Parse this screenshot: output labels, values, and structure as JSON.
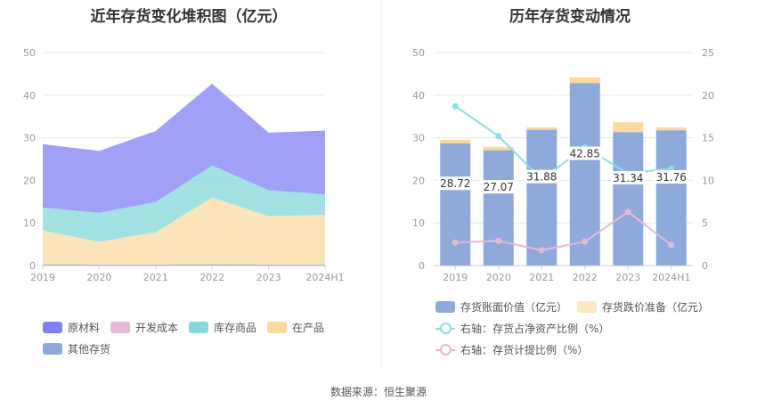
{
  "source_text": "数据来源：恒生聚源",
  "chart_data": [
    {
      "type": "area",
      "stacked": true,
      "title": "近年存货变化堆积图（亿元）",
      "categories": [
        "2019",
        "2020",
        "2021",
        "2022",
        "2023",
        "2024H1"
      ],
      "ylim": [
        0,
        50
      ],
      "yticks": [
        0,
        10,
        20,
        30,
        40,
        50
      ],
      "grid": true,
      "legend_position": "bottom",
      "series": [
        {
          "name": "其他存货",
          "color": "#8eaadb",
          "values": [
            0.3,
            0.2,
            0.2,
            0.3,
            0.2,
            0.2
          ]
        },
        {
          "name": "在产品",
          "color": "#fcdfae",
          "values": [
            7.9,
            5.4,
            7.6,
            15.7,
            11.4,
            11.7
          ]
        },
        {
          "name": "开发成本",
          "color": "#e8b8d8",
          "values": [
            0,
            0,
            0,
            0,
            0,
            0
          ]
        },
        {
          "name": "库存商品",
          "color": "#92dcdc",
          "values": [
            5.4,
            6.8,
            7.1,
            7.5,
            6.1,
            4.8
          ]
        },
        {
          "name": "原材料",
          "color": "#8f8ff4",
          "values": [
            14.9,
            14.5,
            16.7,
            19.2,
            13.5,
            15.0
          ]
        }
      ],
      "legend_order": [
        "原材料",
        "开发成本",
        "库存商品",
        "在产品",
        "其他存货"
      ]
    },
    {
      "type": "bar",
      "stacked": true,
      "title": "历年存货变动情况",
      "categories": [
        "2019",
        "2020",
        "2021",
        "2022",
        "2023",
        "2024H1"
      ],
      "ylim": [
        0,
        50
      ],
      "yticks": [
        0,
        10,
        20,
        30,
        40,
        50
      ],
      "y2lim": [
        0,
        25
      ],
      "y2ticks": [
        0,
        5,
        10,
        15,
        20,
        25
      ],
      "legend_position": "bottom",
      "series": [
        {
          "name": "存货账面价值（亿元）",
          "color": "#8eaadb",
          "values": [
            28.72,
            27.07,
            31.88,
            42.85,
            31.34,
            31.76
          ],
          "data_labels": [
            "28.72",
            "27.07",
            "31.88",
            "42.85",
            "31.34",
            "31.76"
          ]
        },
        {
          "name": "存货跌价准备（亿元）",
          "color": "#fcd99e",
          "values": [
            0.8,
            0.8,
            0.6,
            1.3,
            2.3,
            0.7
          ]
        }
      ],
      "line_series": [
        {
          "name": "右轴：存货占净资产比例（%）",
          "color": "#8adfe3",
          "axis": "right",
          "values": [
            18.7,
            15.2,
            10.1,
            13.9,
            10.8,
            11.4
          ]
        },
        {
          "name": "右轴：存货计提比例（%）",
          "color": "#e8b8d8",
          "axis": "right",
          "values": [
            2.7,
            2.9,
            1.8,
            2.8,
            6.3,
            2.4
          ]
        }
      ]
    }
  ]
}
